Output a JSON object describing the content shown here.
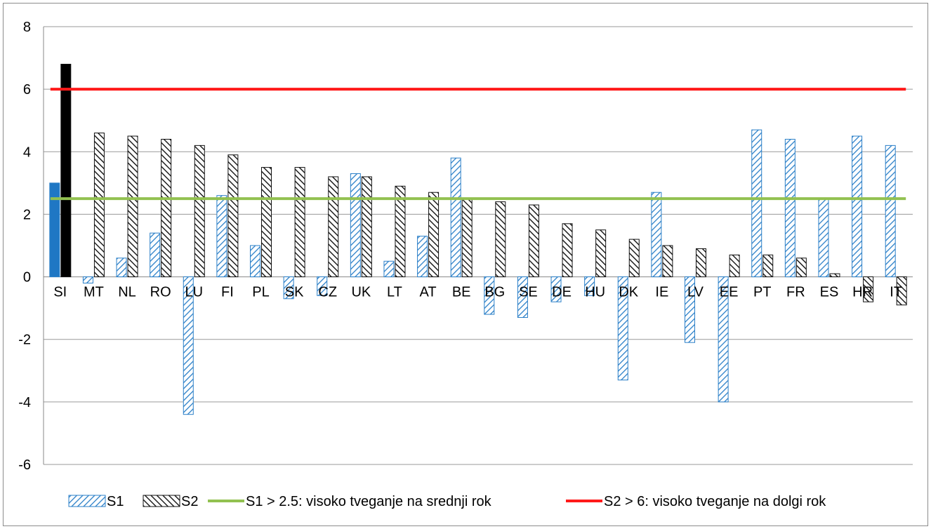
{
  "chart_data": {
    "type": "bar",
    "categories": [
      "SI",
      "MT",
      "NL",
      "RO",
      "LU",
      "FI",
      "PL",
      "SK",
      "CZ",
      "UK",
      "LT",
      "AT",
      "BE",
      "BG",
      "SE",
      "DE",
      "HU",
      "DK",
      "IE",
      "LV",
      "EE",
      "PT",
      "FR",
      "ES",
      "HR",
      "IT"
    ],
    "series": [
      {
        "name": "S1",
        "color": "#1f77c4",
        "values": [
          3.0,
          -0.2,
          0.6,
          1.4,
          -4.4,
          2.6,
          1.0,
          -0.7,
          -0.6,
          3.3,
          0.5,
          1.3,
          3.8,
          -1.2,
          -1.3,
          -0.8,
          -0.6,
          -3.3,
          2.7,
          -2.1,
          -4.0,
          4.7,
          4.4,
          2.5,
          4.5,
          4.2
        ]
      },
      {
        "name": "S2",
        "color": "#000000",
        "values": [
          6.8,
          4.6,
          4.5,
          4.4,
          4.2,
          3.9,
          3.5,
          3.5,
          3.2,
          3.2,
          2.9,
          2.7,
          2.5,
          2.4,
          2.3,
          1.7,
          1.5,
          1.2,
          1.0,
          0.9,
          0.7,
          0.7,
          0.6,
          0.1,
          -0.8,
          -0.9
        ]
      }
    ],
    "thresholds": [
      {
        "label": "S1 > 2.5: visoko tveganje na srednji rok",
        "value": 2.5,
        "color": "#92c150"
      },
      {
        "label": "S2 > 6: visoko tveganje na dolgi rok",
        "value": 6,
        "color": "#ff1a1a"
      }
    ],
    "highlight_category": "SI",
    "ylim": [
      -6,
      8
    ],
    "yticks": [
      -6,
      -4,
      -2,
      0,
      2,
      4,
      6,
      8
    ],
    "grid": true,
    "legend": "bottom",
    "title": "",
    "xlabel": "",
    "ylabel": ""
  }
}
